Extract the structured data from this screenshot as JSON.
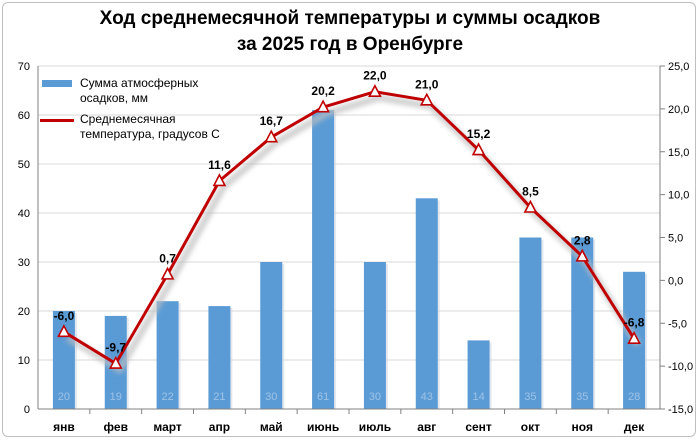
{
  "chart_data": {
    "type": "bar+line",
    "title_lines": [
      "Ход среднемесячной температуры и суммы осадков",
      "за 2025 год в Оренбурге"
    ],
    "categories": [
      "янв",
      "фев",
      "март",
      "апр",
      "май",
      "июнь",
      "июль",
      "авг",
      "сент",
      "окт",
      "ноя",
      "дек"
    ],
    "series": [
      {
        "name": "Сумма атмосферных осадков, мм",
        "type": "bar",
        "axis": "left",
        "color": "#5b9bd5",
        "values": [
          20,
          19,
          22,
          21,
          30,
          61,
          30,
          43,
          14,
          35,
          35,
          28
        ],
        "labels": [
          "20",
          "19",
          "22",
          "21",
          "30",
          "61",
          "30",
          "43",
          "14",
          "35",
          "35",
          "28"
        ]
      },
      {
        "name": "Среднемесячная температура, градусов С",
        "type": "line",
        "axis": "right",
        "color": "#c00000",
        "values": [
          -6.0,
          -9.7,
          0.7,
          11.6,
          16.7,
          20.2,
          22.0,
          21.0,
          15.2,
          8.5,
          2.8,
          -6.8
        ],
        "labels": [
          "-6,0",
          "-9,7",
          "0,7",
          "11,6",
          "16,7",
          "20,2",
          "22,0",
          "21,0",
          "15,2",
          "8,5",
          "2,8",
          "-6,8"
        ]
      }
    ],
    "y_left": {
      "min": 0,
      "max": 70,
      "ticks": [
        "0",
        "10",
        "20",
        "30",
        "40",
        "50",
        "60",
        "70"
      ]
    },
    "y_right": {
      "min": -15,
      "max": 25,
      "ticks": [
        "-15,0",
        "-10,0",
        "-5,0",
        "0,0",
        "5,0",
        "10,0",
        "15,0",
        "20,0",
        "25,0"
      ]
    },
    "legend": {
      "placement": "top-left",
      "bar_label_lines": [
        "Сумма атмосферных",
        "осадков, мм"
      ],
      "line_label_lines": [
        "Среднемесячная",
        "температура, градусов С"
      ]
    },
    "grid": true
  }
}
